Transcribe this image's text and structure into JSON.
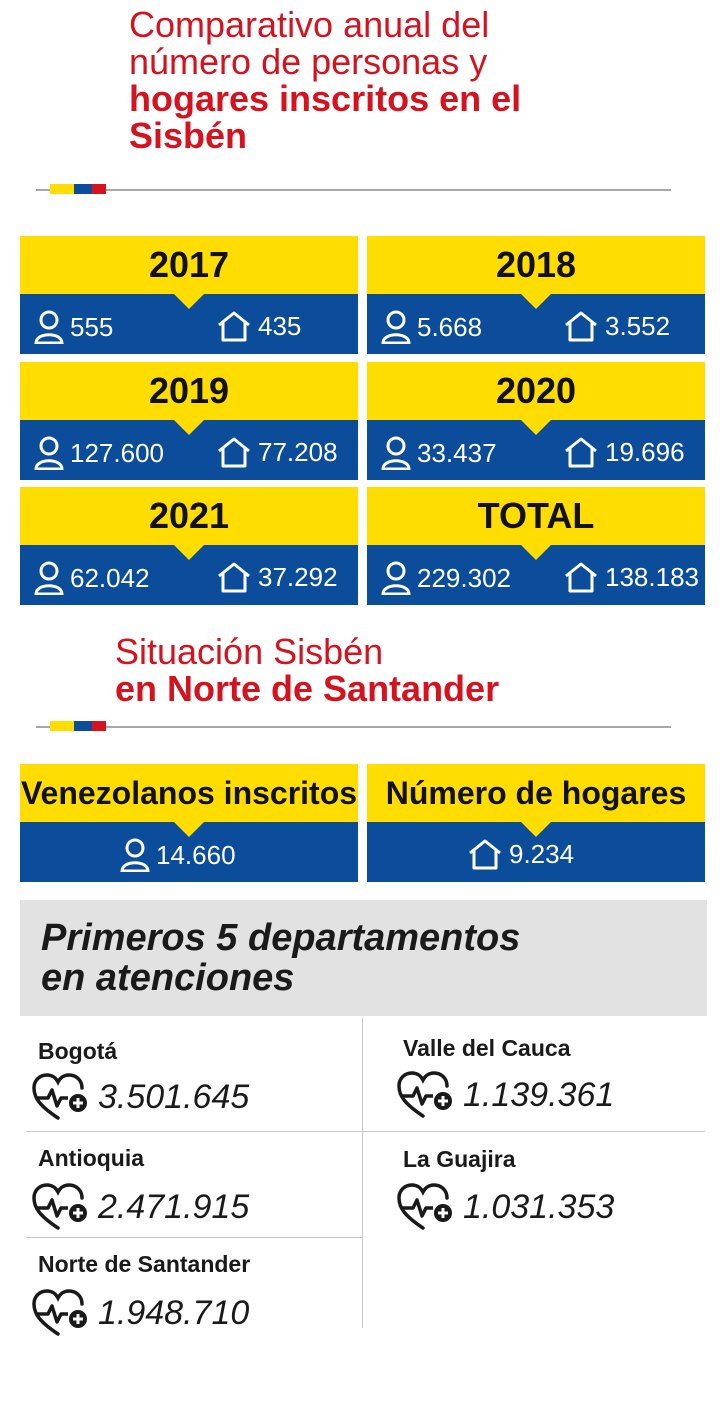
{
  "title": {
    "line1": "Comparativo anual del",
    "line2": "número de personas y",
    "line3": "hogares inscritos en el",
    "line4": "Sisbén"
  },
  "years": [
    {
      "label": "2017",
      "personas": "555",
      "hogares": "435"
    },
    {
      "label": "2018",
      "personas": "5.668",
      "hogares": "3.552"
    },
    {
      "label": "2019",
      "personas": "127.600",
      "hogares": "77.208"
    },
    {
      "label": "2020",
      "personas": "33.437",
      "hogares": "19.696"
    },
    {
      "label": "2021",
      "personas": "62.042",
      "hogares": "37.292"
    },
    {
      "label": "TOTAL",
      "personas": "229.302",
      "hogares": "138.183"
    }
  ],
  "section2": {
    "line1": "Situación Sisbén",
    "line2": "en Norte de Santander"
  },
  "venezolanos": {
    "label": "Venezolanos inscritos",
    "value": "14.660"
  },
  "hogares": {
    "label": "Número de hogares",
    "value": "9.234"
  },
  "section3": {
    "line1": "Primeros 5 departamentos",
    "line2": "en atenciones"
  },
  "departments": [
    {
      "name": "Bogotá",
      "value": "3.501.645"
    },
    {
      "name": "Valle del Cauca",
      "value": "1.139.361"
    },
    {
      "name": "Antioquia",
      "value": "2.471.915"
    },
    {
      "name": "La Guajira",
      "value": "1.031.353"
    },
    {
      "name": "Norte de Santander",
      "value": "1.948.710"
    }
  ],
  "icons": {
    "person": "person-icon",
    "house": "house-icon",
    "health": "heart-pulse-plus-icon"
  },
  "colors": {
    "red": "#d6121f",
    "yellow": "#ffdd00",
    "blue": "#0b4c9b",
    "grey": "#e2e2e2"
  }
}
